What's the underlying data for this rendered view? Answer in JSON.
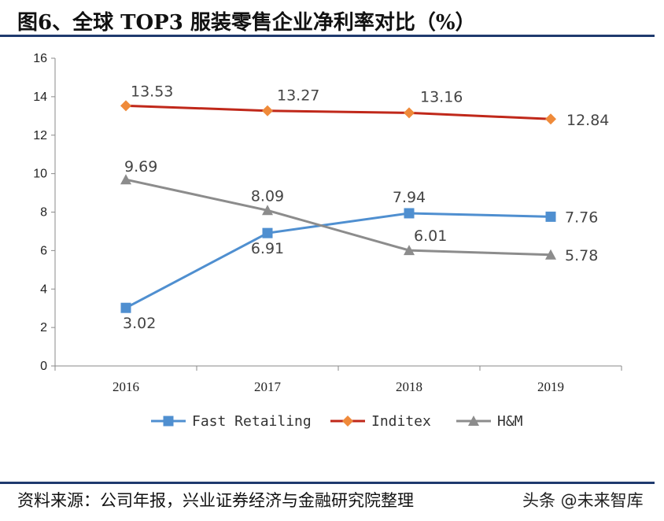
{
  "header": {
    "title": "图6、全球 TOP3 服装零售企业净利率对比（%）"
  },
  "footer": {
    "source": "资料来源：公司年报，兴业证券经济与金融研究院整理",
    "watermark": "头条 @未来智库"
  },
  "chart_data": {
    "type": "line",
    "categories": [
      "2016",
      "2017",
      "2018",
      "2019"
    ],
    "ylim": [
      0,
      16
    ],
    "yticks": [
      0,
      2,
      4,
      6,
      8,
      10,
      12,
      14,
      16
    ],
    "legend_position": "bottom",
    "grid": false,
    "series": [
      {
        "name": "Fast Retailing",
        "values": [
          3.02,
          6.91,
          7.94,
          7.76
        ],
        "labels": [
          "3.02",
          "6.91",
          "7.94",
          "7.76"
        ],
        "color": "#4f8fd0",
        "marker": "square"
      },
      {
        "name": "Inditex",
        "values": [
          13.53,
          13.27,
          13.16,
          12.84
        ],
        "labels": [
          "13.53",
          "13.27",
          "13.16",
          "12.84"
        ],
        "color": "#c0281a",
        "marker": "diamond",
        "marker_color": "#ef8a3a"
      },
      {
        "name": "H&M",
        "values": [
          9.69,
          8.09,
          6.01,
          5.78
        ],
        "labels": [
          "9.69",
          "8.09",
          "6.01",
          "5.78"
        ],
        "color": "#8c8c8c",
        "marker": "triangle"
      }
    ]
  }
}
